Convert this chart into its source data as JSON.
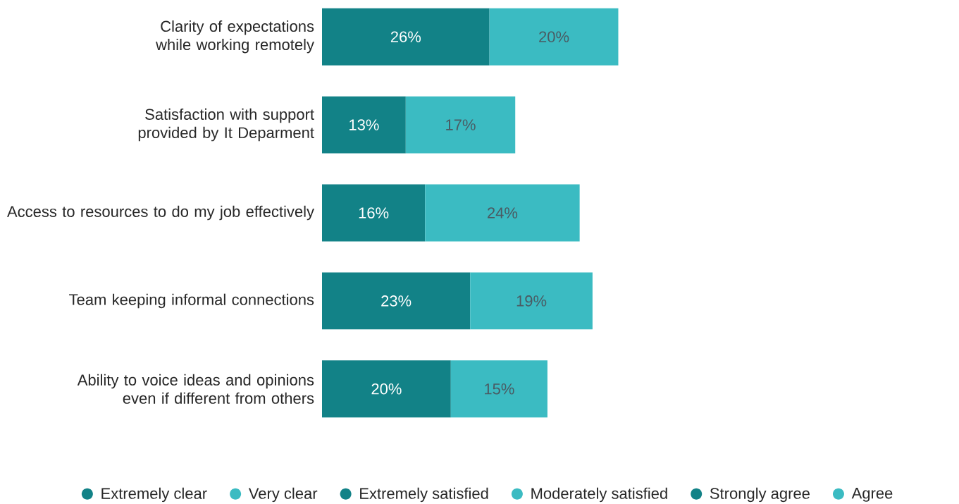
{
  "chart_data": {
    "type": "bar",
    "orientation": "horizontal",
    "stacked": true,
    "categories": [
      "Clarity of expectations while working remotely",
      "Satisfaction with support provided by It Deparment",
      "Access to resources to do my job effectively",
      "Team keeping informal connections",
      "Ability to voice ideas and opinions even if different from others"
    ],
    "series": [
      {
        "name": "Extremely clear",
        "color": "#128287",
        "values": [
          26,
          null,
          null,
          null,
          null
        ],
        "value_labels": [
          "26%",
          null,
          null,
          null,
          null
        ]
      },
      {
        "name": "Very clear",
        "color": "#3bbbc2",
        "values": [
          20,
          null,
          null,
          null,
          null
        ],
        "value_labels": [
          "20%",
          null,
          null,
          null,
          null
        ]
      },
      {
        "name": "Extremely satisfied",
        "color": "#128287",
        "values": [
          null,
          13,
          null,
          null,
          null
        ],
        "value_labels": [
          null,
          "13%",
          null,
          null,
          null
        ]
      },
      {
        "name": "Moderately satisfied",
        "color": "#3bbbc2",
        "values": [
          null,
          17,
          null,
          null,
          null
        ],
        "value_labels": [
          null,
          "17%",
          null,
          null,
          null
        ]
      },
      {
        "name": "Strongly agree",
        "color": "#128287",
        "values": [
          null,
          null,
          16,
          23,
          20
        ],
        "value_labels": [
          null,
          null,
          "16%",
          "23%",
          "20%"
        ]
      },
      {
        "name": "Agree",
        "color": "#3bbbc2",
        "values": [
          null,
          null,
          24,
          19,
          15
        ],
        "value_labels": [
          null,
          null,
          "24%",
          "19%",
          "15%"
        ]
      }
    ],
    "legend": "bottom",
    "tick_labels": "y"
  }
}
